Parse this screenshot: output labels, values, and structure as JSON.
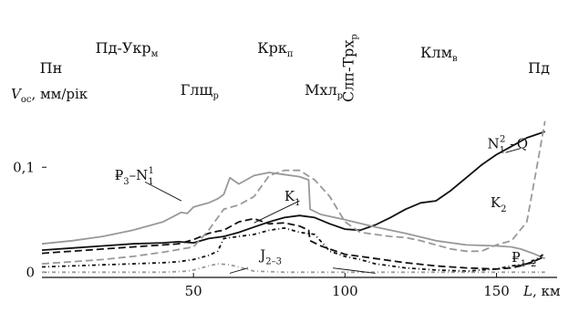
{
  "chart_data": {
    "type": "line",
    "title": "",
    "ylabel": {
      "main": "V",
      "sub": "ос",
      "rest": ", мм/рік"
    },
    "xlabel": {
      "main": "L",
      "rest": ", км"
    },
    "xlim": [
      0,
      170
    ],
    "ylim": [
      -0.005,
      0.155
    ],
    "x_ticks": [
      {
        "value": 50,
        "label": "50"
      },
      {
        "value": 100,
        "label": "100"
      },
      {
        "value": 150,
        "label": "150"
      }
    ],
    "y_ticks": [
      {
        "value": 0,
        "label": "0"
      },
      {
        "value": 0.1,
        "label": "0,1"
      }
    ],
    "grid": false,
    "regions": [
      {
        "main": "Пн",
        "sub": "",
        "x": 3
      },
      {
        "main": "Пд-Укр",
        "sub": "м",
        "x": 28
      },
      {
        "main": "Глщ",
        "sub": "р",
        "x": 52
      },
      {
        "main": "Крк",
        "sub": "п",
        "x": 77
      },
      {
        "main": "Мхл",
        "sub": "р",
        "x": 93
      },
      {
        "main": "Слп-Трх",
        "sub": "р",
        "x": 101,
        "vertical": true
      },
      {
        "main": "Клм",
        "sub": "в",
        "x": 131
      },
      {
        "main": "Пд",
        "sub": "",
        "x": 164
      }
    ],
    "series": [
      {
        "name": "N₁²–Q",
        "label": {
          "main": "N",
          "sub": "1",
          "sup": "2",
          "rest": " –Q"
        },
        "color": "#111111",
        "dash": "solid",
        "width": 1.8,
        "label_pos": {
          "x": 147,
          "y": 0.118
        },
        "x": [
          0,
          10,
          20,
          30,
          40,
          45,
          50,
          55,
          60,
          65,
          70,
          75,
          80,
          85,
          90,
          95,
          100,
          105,
          110,
          115,
          120,
          125,
          130,
          135,
          140,
          145,
          150,
          155,
          160,
          163,
          166
        ],
        "y": [
          0.021,
          0.023,
          0.025,
          0.027,
          0.028,
          0.029,
          0.028,
          0.032,
          0.034,
          0.038,
          0.043,
          0.048,
          0.052,
          0.054,
          0.052,
          0.046,
          0.041,
          0.04,
          0.045,
          0.052,
          0.06,
          0.066,
          0.068,
          0.078,
          0.09,
          0.102,
          0.112,
          0.12,
          0.128,
          0.131,
          0.134
        ]
      },
      {
        "name": "₽₃–N₁¹",
        "label": {
          "main": "₽",
          "sub": "3",
          "rest": "–N",
          "sub2": "1",
          "sup2": "1"
        },
        "color": "#999999",
        "dash": "solid",
        "width": 1.8,
        "label_pos": {
          "x": 24,
          "y": 0.088
        },
        "x": [
          0,
          10,
          20,
          30,
          40,
          44,
          46,
          48,
          50,
          55,
          58,
          60,
          62,
          65,
          70,
          75,
          80,
          85,
          88,
          88.5,
          92,
          100,
          110,
          120,
          130,
          140,
          150,
          155,
          158,
          162,
          166
        ],
        "y": [
          0.027,
          0.03,
          0.034,
          0.04,
          0.048,
          0.054,
          0.057,
          0.056,
          0.062,
          0.066,
          0.07,
          0.074,
          0.09,
          0.084,
          0.092,
          0.095,
          0.093,
          0.091,
          0.088,
          0.06,
          0.055,
          0.05,
          0.043,
          0.037,
          0.03,
          0.026,
          0.025,
          0.024,
          0.022,
          0.018,
          0.013
        ]
      },
      {
        "name": "K₁",
        "label": {
          "main": "K",
          "sub": "1",
          "rest": ""
        },
        "color": "#111111",
        "dash": "8,4",
        "width": 1.8,
        "label_pos": {
          "x": 80,
          "y": 0.068
        },
        "x": [
          0,
          5,
          10,
          20,
          30,
          40,
          45,
          50,
          55,
          58,
          60,
          65,
          70,
          75,
          80,
          85,
          88,
          88.5,
          92,
          100,
          110,
          120,
          130,
          140,
          150,
          155,
          158,
          162,
          166
        ],
        "y": [
          0.018,
          0.019,
          0.02,
          0.022,
          0.024,
          0.026,
          0.027,
          0.031,
          0.037,
          0.039,
          0.04,
          0.048,
          0.051,
          0.046,
          0.047,
          0.044,
          0.04,
          0.03,
          0.025,
          0.017,
          0.013,
          0.009,
          0.006,
          0.004,
          0.003,
          0.004,
          0.006,
          0.01,
          0.015
        ]
      },
      {
        "name": "K₂",
        "label": {
          "main": "K",
          "sub": "2",
          "rest": ""
        },
        "color": "#999999",
        "dash": "8,4",
        "width": 1.8,
        "label_pos": {
          "x": 148,
          "y": 0.062
        },
        "x": [
          0,
          10,
          20,
          30,
          40,
          50,
          55,
          60,
          65,
          70,
          75,
          80,
          85,
          90,
          95,
          100,
          105,
          110,
          115,
          120,
          125,
          130,
          135,
          140,
          145,
          150,
          155,
          160,
          163,
          166
        ],
        "y": [
          0.008,
          0.01,
          0.012,
          0.015,
          0.019,
          0.024,
          0.04,
          0.06,
          0.064,
          0.072,
          0.092,
          0.097,
          0.097,
          0.088,
          0.072,
          0.048,
          0.038,
          0.036,
          0.034,
          0.033,
          0.03,
          0.026,
          0.022,
          0.02,
          0.02,
          0.026,
          0.03,
          0.048,
          0.095,
          0.144
        ]
      },
      {
        "name": "₽₁₋₂",
        "label": {
          "main": "₽",
          "sub": "1–2",
          "rest": ""
        },
        "color": "#111111",
        "dash": "4,3,1,3",
        "width": 1.8,
        "label_pos": {
          "x": 155,
          "y": 0.01
        },
        "x": [
          0,
          10,
          20,
          30,
          40,
          45,
          50,
          55,
          58,
          60,
          65,
          70,
          75,
          80,
          85,
          90,
          95,
          100,
          105,
          110,
          120,
          130,
          140,
          150,
          155,
          160,
          163,
          166
        ],
        "y": [
          0.005,
          0.006,
          0.007,
          0.008,
          0.009,
          0.01,
          0.012,
          0.016,
          0.02,
          0.032,
          0.034,
          0.036,
          0.04,
          0.042,
          0.038,
          0.036,
          0.02,
          0.015,
          0.012,
          0.008,
          0.004,
          0.002,
          0.001,
          0.003,
          0.006,
          0.008,
          0.012,
          0.018
        ]
      },
      {
        "name": "J₂₋₃",
        "label": {
          "main": "J",
          "sub": "2–3",
          "rest": ""
        },
        "color": "#999999",
        "dash": "4,3,1,3",
        "width": 1.8,
        "label_pos": {
          "x": 72,
          "y": 0.012
        },
        "x": [
          0,
          10,
          20,
          30,
          40,
          48,
          50,
          55,
          58,
          62,
          66,
          70,
          80,
          90,
          100,
          110,
          120,
          130,
          140,
          150,
          160,
          166
        ],
        "y": [
          0,
          0,
          0,
          0,
          0,
          0.001,
          0.002,
          0.006,
          0.008,
          0.007,
          0.004,
          0.001,
          0,
          0,
          0,
          0,
          0,
          0,
          0,
          0,
          0,
          0
        ]
      }
    ],
    "annotations": [
      {
        "series": "₽₃–N₁¹",
        "from": [
          34,
          0.086
        ],
        "to": [
          46,
          0.068
        ]
      },
      {
        "series": "K₁",
        "from": [
          85,
          0.068
        ],
        "to": [
          70,
          0.047
        ]
      },
      {
        "series": "J₂₋₃",
        "from": [
          68,
          0.004
        ],
        "to": [
          62,
          -0.001
        ]
      },
      {
        "series": "J₂₋₃",
        "from": [
          96,
          0.004
        ],
        "to": [
          110,
          -0.001
        ]
      },
      {
        "series": "₽₁₋₂",
        "from": [
          156,
          0.006
        ],
        "to": [
          163,
          0.009
        ]
      },
      {
        "series": "N₁²–Q",
        "from": [
          153,
          0.114
        ],
        "to": [
          158,
          0.118
        ]
      }
    ]
  }
}
